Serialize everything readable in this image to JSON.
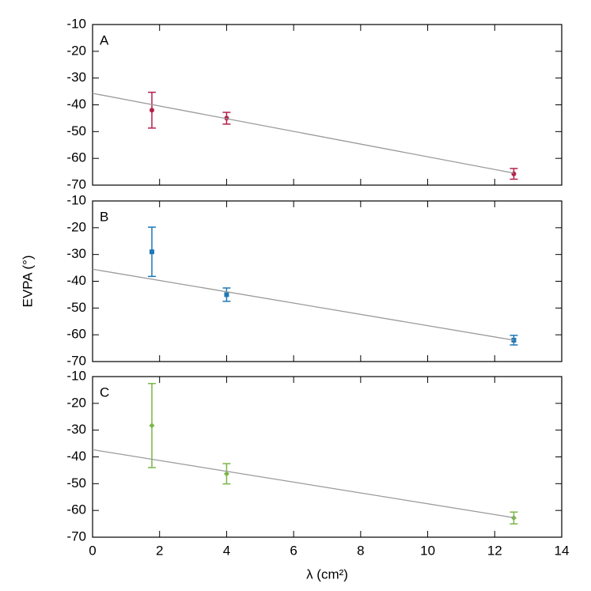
{
  "chart_data": [
    {
      "type": "scatter",
      "annotation": "A",
      "xlim": [
        0,
        14
      ],
      "ylim": [
        -70,
        -10
      ],
      "yticks": [
        -70,
        -60,
        -50,
        -40,
        -30,
        -20,
        -10
      ],
      "series": [
        {
          "color": "#b5204a",
          "marker": "circle",
          "x": [
            1.77,
            4.0,
            12.57
          ],
          "values": [
            -42,
            -45,
            -65.8
          ],
          "errors": [
            6.7,
            2.2,
            2.0
          ]
        },
        {
          "color": "#9a9a9a",
          "style": "line",
          "x": [
            0,
            12.57
          ],
          "values": [
            -35.7,
            -65.5
          ]
        }
      ]
    },
    {
      "type": "scatter",
      "annotation": "B",
      "ylabel": "EVPA (°)",
      "xlim": [
        0,
        14
      ],
      "ylim": [
        -70,
        -10
      ],
      "yticks": [
        -70,
        -60,
        -50,
        -40,
        -30,
        -20,
        -10
      ],
      "series": [
        {
          "color": "#1f78b4",
          "marker": "square",
          "x": [
            1.77,
            4.0,
            12.57
          ],
          "values": [
            -29,
            -45,
            -62
          ],
          "errors": [
            9.2,
            2.5,
            1.8
          ]
        },
        {
          "color": "#9a9a9a",
          "style": "line",
          "x": [
            0,
            12.57
          ],
          "values": [
            -35.5,
            -62
          ]
        }
      ]
    },
    {
      "type": "scatter",
      "annotation": "C",
      "xlabel": "λ (cm²)",
      "xlim": [
        0,
        14
      ],
      "ylim": [
        -70,
        -10
      ],
      "xticks": [
        0,
        2,
        4,
        6,
        8,
        10,
        12,
        14
      ],
      "yticks": [
        -70,
        -60,
        -50,
        -40,
        -30,
        -20,
        -10
      ],
      "series": [
        {
          "color": "#7ab648",
          "marker": "diamond",
          "x": [
            1.77,
            4.0,
            12.57
          ],
          "values": [
            -28.3,
            -46.3,
            -62.8
          ],
          "errors": [
            15.7,
            3.8,
            2.2
          ]
        },
        {
          "color": "#9a9a9a",
          "style": "line",
          "x": [
            0,
            12.57
          ],
          "values": [
            -37.3,
            -62.7
          ]
        }
      ]
    }
  ]
}
